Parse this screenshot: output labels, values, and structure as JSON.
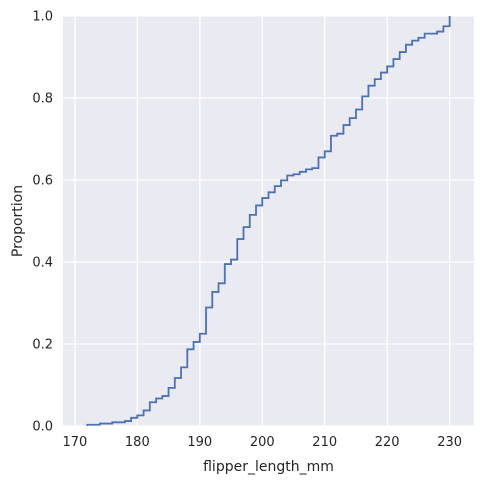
{
  "chart_data": {
    "type": "line",
    "subtype": "ecdf-step",
    "title": "",
    "xlabel": "flipper_length_mm",
    "ylabel": "Proportion",
    "xlim": [
      168.1,
      233.9
    ],
    "ylim": [
      0,
      1
    ],
    "xticks": [
      170,
      180,
      190,
      200,
      210,
      220,
      230
    ],
    "yticks": [
      0.0,
      0.2,
      0.4,
      0.6,
      0.8,
      1.0
    ],
    "xtick_labels": [
      "170",
      "180",
      "190",
      "200",
      "210",
      "220",
      "230"
    ],
    "ytick_labels": [
      "0.0",
      "0.2",
      "0.4",
      "0.6",
      "0.8",
      "1.0"
    ],
    "grid": true,
    "legend": "none",
    "colors": {
      "background": "#eaeaf2",
      "grid": "#ffffff",
      "line": "#4c72b0",
      "text": "#262626"
    },
    "series": [
      {
        "x": [
          172,
          174,
          176,
          178,
          179,
          180,
          181,
          182,
          183,
          184,
          185,
          186,
          187,
          188,
          189,
          190,
          191,
          192,
          193,
          194,
          195,
          196,
          197,
          198,
          199,
          200,
          201,
          202,
          203,
          204,
          205,
          206,
          207,
          208,
          209,
          210,
          211,
          212,
          213,
          214,
          215,
          216,
          217,
          218,
          219,
          220,
          221,
          222,
          223,
          224,
          225,
          226,
          228,
          229,
          230
        ],
        "y": [
          0.003,
          0.006,
          0.009,
          0.012,
          0.02,
          0.026,
          0.038,
          0.058,
          0.067,
          0.073,
          0.093,
          0.117,
          0.143,
          0.187,
          0.205,
          0.225,
          0.289,
          0.327,
          0.348,
          0.395,
          0.406,
          0.456,
          0.485,
          0.515,
          0.538,
          0.556,
          0.57,
          0.585,
          0.599,
          0.611,
          0.614,
          0.62,
          0.626,
          0.629,
          0.655,
          0.67,
          0.708,
          0.713,
          0.734,
          0.751,
          0.772,
          0.804,
          0.83,
          0.846,
          0.862,
          0.877,
          0.895,
          0.912,
          0.93,
          0.94,
          0.947,
          0.957,
          0.962,
          0.975,
          1.0
        ]
      }
    ]
  }
}
